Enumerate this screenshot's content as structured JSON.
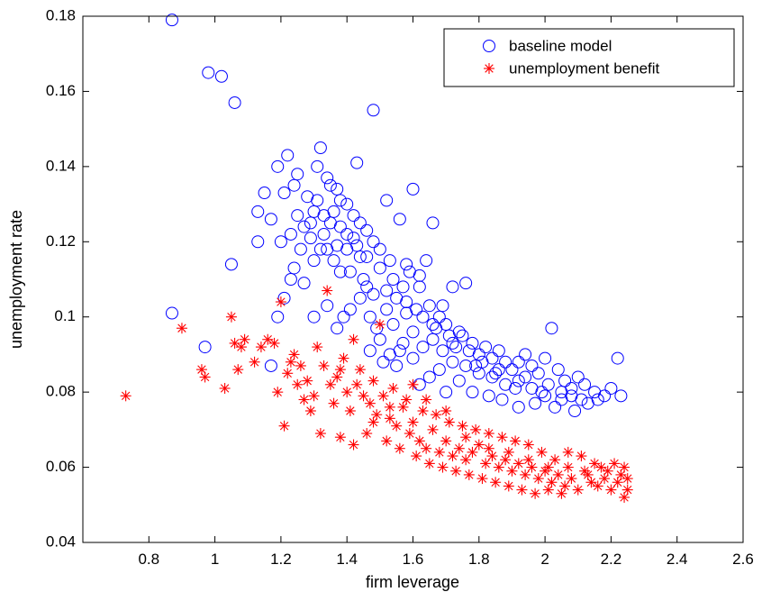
{
  "chart_data": {
    "type": "scatter",
    "xlabel": "firm leverage",
    "ylabel": "unemployment rate",
    "xlim": [
      0.6,
      2.6
    ],
    "ylim": [
      0.04,
      0.18
    ],
    "xticks": [
      "0.8",
      "1",
      "1.2",
      "1.4",
      "1.6",
      "1.8",
      "2",
      "2.2",
      "2.4",
      "2.6"
    ],
    "yticks": [
      "0.04",
      "0.06",
      "0.08",
      "0.1",
      "0.12",
      "0.14",
      "0.16",
      "0.18"
    ],
    "grid": false,
    "legend_position": "top-right",
    "series": [
      {
        "name": "baseline model",
        "marker": "circle",
        "color": "#0000ff",
        "points": [
          [
            0.87,
            0.179
          ],
          [
            0.98,
            0.165
          ],
          [
            1.02,
            0.164
          ],
          [
            1.06,
            0.157
          ],
          [
            1.48,
            0.155
          ],
          [
            0.87,
            0.101
          ],
          [
            0.97,
            0.092
          ],
          [
            1.05,
            0.114
          ],
          [
            1.17,
            0.087
          ],
          [
            1.13,
            0.128
          ],
          [
            1.15,
            0.133
          ],
          [
            1.17,
            0.126
          ],
          [
            1.19,
            0.14
          ],
          [
            1.21,
            0.133
          ],
          [
            1.22,
            0.143
          ],
          [
            1.24,
            0.135
          ],
          [
            1.25,
            0.138
          ],
          [
            1.2,
            0.12
          ],
          [
            1.13,
            0.12
          ],
          [
            1.28,
            0.132
          ],
          [
            1.3,
            0.128
          ],
          [
            1.32,
            0.145
          ],
          [
            1.31,
            0.14
          ],
          [
            1.35,
            0.135
          ],
          [
            1.29,
            0.125
          ],
          [
            1.26,
            0.118
          ],
          [
            1.24,
            0.113
          ],
          [
            1.23,
            0.11
          ],
          [
            1.21,
            0.105
          ],
          [
            1.19,
            0.1
          ],
          [
            1.27,
            0.109
          ],
          [
            1.3,
            0.115
          ],
          [
            1.33,
            0.122
          ],
          [
            1.36,
            0.128
          ],
          [
            1.38,
            0.131
          ],
          [
            1.43,
            0.141
          ],
          [
            1.4,
            0.13
          ],
          [
            1.42,
            0.127
          ],
          [
            1.44,
            0.125
          ],
          [
            1.34,
            0.118
          ],
          [
            1.36,
            0.115
          ],
          [
            1.38,
            0.112
          ],
          [
            1.4,
            0.118
          ],
          [
            1.42,
            0.121
          ],
          [
            1.46,
            0.123
          ],
          [
            1.48,
            0.12
          ],
          [
            1.5,
            0.118
          ],
          [
            1.52,
            0.131
          ],
          [
            1.56,
            0.126
          ],
          [
            1.6,
            0.134
          ],
          [
            1.66,
            0.125
          ],
          [
            1.64,
            0.115
          ],
          [
            1.59,
            0.112
          ],
          [
            1.54,
            0.11
          ],
          [
            1.5,
            0.113
          ],
          [
            1.46,
            0.108
          ],
          [
            1.44,
            0.105
          ],
          [
            1.41,
            0.102
          ],
          [
            1.39,
            0.1
          ],
          [
            1.37,
            0.097
          ],
          [
            1.3,
            0.1
          ],
          [
            1.34,
            0.103
          ],
          [
            1.47,
            0.1
          ],
          [
            1.49,
            0.097
          ],
          [
            1.52,
            0.102
          ],
          [
            1.55,
            0.105
          ],
          [
            1.58,
            0.104
          ],
          [
            1.62,
            0.108
          ],
          [
            1.65,
            0.103
          ],
          [
            1.68,
            0.1
          ],
          [
            1.72,
            0.108
          ],
          [
            1.76,
            0.109
          ],
          [
            1.7,
            0.098
          ],
          [
            1.74,
            0.096
          ],
          [
            1.6,
            0.096
          ],
          [
            1.57,
            0.093
          ],
          [
            1.53,
            0.09
          ],
          [
            1.55,
            0.087
          ],
          [
            1.6,
            0.089
          ],
          [
            1.63,
            0.092
          ],
          [
            1.66,
            0.094
          ],
          [
            1.69,
            0.091
          ],
          [
            1.72,
            0.093
          ],
          [
            1.75,
            0.095
          ],
          [
            1.78,
            0.093
          ],
          [
            1.8,
            0.09
          ],
          [
            1.82,
            0.092
          ],
          [
            1.84,
            0.089
          ],
          [
            1.86,
            0.091
          ],
          [
            1.88,
            0.088
          ],
          [
            1.9,
            0.086
          ],
          [
            1.92,
            0.088
          ],
          [
            1.94,
            0.09
          ],
          [
            1.96,
            0.087
          ],
          [
            1.98,
            0.085
          ],
          [
            2.0,
            0.089
          ],
          [
            2.02,
            0.097
          ],
          [
            2.04,
            0.086
          ],
          [
            2.06,
            0.083
          ],
          [
            2.08,
            0.081
          ],
          [
            2.1,
            0.084
          ],
          [
            2.12,
            0.082
          ],
          [
            2.15,
            0.08
          ],
          [
            2.18,
            0.079
          ],
          [
            2.22,
            0.089
          ],
          [
            2.23,
            0.079
          ],
          [
            2.2,
            0.081
          ],
          [
            2.13,
            0.077
          ],
          [
            2.09,
            0.075
          ],
          [
            2.05,
            0.078
          ],
          [
            2.0,
            0.079
          ],
          [
            1.96,
            0.081
          ],
          [
            1.92,
            0.083
          ],
          [
            1.88,
            0.082
          ],
          [
            1.84,
            0.084
          ],
          [
            1.8,
            0.085
          ],
          [
            1.76,
            0.087
          ],
          [
            1.72,
            0.088
          ],
          [
            1.68,
            0.086
          ],
          [
            1.65,
            0.084
          ],
          [
            1.62,
            0.082
          ],
          [
            1.7,
            0.08
          ],
          [
            1.74,
            0.083
          ],
          [
            1.78,
            0.08
          ],
          [
            1.83,
            0.079
          ],
          [
            1.87,
            0.078
          ],
          [
            1.92,
            0.076
          ],
          [
            1.97,
            0.077
          ],
          [
            2.03,
            0.076
          ],
          [
            2.08,
            0.079
          ],
          [
            2.01,
            0.082
          ],
          [
            1.94,
            0.084
          ],
          [
            1.86,
            0.086
          ],
          [
            1.81,
            0.088
          ],
          [
            1.77,
            0.091
          ],
          [
            1.71,
            0.095
          ],
          [
            1.67,
            0.097
          ],
          [
            1.63,
            0.1
          ],
          [
            1.58,
            0.101
          ],
          [
            1.54,
            0.098
          ],
          [
            1.5,
            0.094
          ],
          [
            1.47,
            0.091
          ],
          [
            1.51,
            0.088
          ],
          [
            1.56,
            0.091
          ],
          [
            1.46,
            0.116
          ],
          [
            1.43,
            0.119
          ],
          [
            1.4,
            0.122
          ],
          [
            1.37,
            0.119
          ],
          [
            1.35,
            0.125
          ],
          [
            1.32,
            0.118
          ],
          [
            1.29,
            0.121
          ],
          [
            1.27,
            0.124
          ],
          [
            1.25,
            0.127
          ],
          [
            1.23,
            0.122
          ],
          [
            1.41,
            0.112
          ],
          [
            1.45,
            0.11
          ],
          [
            1.48,
            0.106
          ],
          [
            1.52,
            0.107
          ],
          [
            1.57,
            0.108
          ],
          [
            1.61,
            0.102
          ],
          [
            1.66,
            0.098
          ],
          [
            1.73,
            0.092
          ],
          [
            1.79,
            0.087
          ],
          [
            1.85,
            0.085
          ],
          [
            1.91,
            0.081
          ],
          [
            1.99,
            0.08
          ],
          [
            2.05,
            0.08
          ],
          [
            2.11,
            0.078
          ],
          [
            2.16,
            0.078
          ],
          [
            1.38,
            0.124
          ],
          [
            1.33,
            0.127
          ],
          [
            1.31,
            0.131
          ],
          [
            1.34,
            0.137
          ],
          [
            1.37,
            0.134
          ],
          [
            1.44,
            0.116
          ],
          [
            1.53,
            0.115
          ],
          [
            1.58,
            0.114
          ],
          [
            1.62,
            0.111
          ],
          [
            1.69,
            0.103
          ]
        ]
      },
      {
        "name": "unemployment benefit",
        "marker": "star",
        "color": "#ff0000",
        "points": [
          [
            0.73,
            0.079
          ],
          [
            0.9,
            0.097
          ],
          [
            0.96,
            0.086
          ],
          [
            0.97,
            0.084
          ],
          [
            1.03,
            0.081
          ],
          [
            1.05,
            0.1
          ],
          [
            1.06,
            0.093
          ],
          [
            1.08,
            0.092
          ],
          [
            1.09,
            0.094
          ],
          [
            1.07,
            0.086
          ],
          [
            1.12,
            0.088
          ],
          [
            1.14,
            0.092
          ],
          [
            1.16,
            0.094
          ],
          [
            1.18,
            0.093
          ],
          [
            1.2,
            0.104
          ],
          [
            1.19,
            0.08
          ],
          [
            1.21,
            0.071
          ],
          [
            1.22,
            0.085
          ],
          [
            1.24,
            0.09
          ],
          [
            1.26,
            0.087
          ],
          [
            1.28,
            0.083
          ],
          [
            1.3,
            0.079
          ],
          [
            1.32,
            0.069
          ],
          [
            1.34,
            0.107
          ],
          [
            1.35,
            0.082
          ],
          [
            1.36,
            0.077
          ],
          [
            1.38,
            0.086
          ],
          [
            1.4,
            0.08
          ],
          [
            1.42,
            0.094
          ],
          [
            1.41,
            0.075
          ],
          [
            1.43,
            0.082
          ],
          [
            1.45,
            0.079
          ],
          [
            1.47,
            0.077
          ],
          [
            1.49,
            0.074
          ],
          [
            1.5,
            0.098
          ],
          [
            1.51,
            0.079
          ],
          [
            1.53,
            0.073
          ],
          [
            1.55,
            0.071
          ],
          [
            1.57,
            0.076
          ],
          [
            1.59,
            0.069
          ],
          [
            1.6,
            0.072
          ],
          [
            1.62,
            0.067
          ],
          [
            1.64,
            0.065
          ],
          [
            1.66,
            0.07
          ],
          [
            1.68,
            0.064
          ],
          [
            1.7,
            0.067
          ],
          [
            1.72,
            0.063
          ],
          [
            1.74,
            0.065
          ],
          [
            1.76,
            0.062
          ],
          [
            1.78,
            0.064
          ],
          [
            1.8,
            0.066
          ],
          [
            1.82,
            0.061
          ],
          [
            1.84,
            0.063
          ],
          [
            1.86,
            0.06
          ],
          [
            1.88,
            0.062
          ],
          [
            1.9,
            0.059
          ],
          [
            1.92,
            0.061
          ],
          [
            1.94,
            0.058
          ],
          [
            1.96,
            0.06
          ],
          [
            1.98,
            0.057
          ],
          [
            2.0,
            0.059
          ],
          [
            2.02,
            0.056
          ],
          [
            2.04,
            0.058
          ],
          [
            2.06,
            0.055
          ],
          [
            2.08,
            0.057
          ],
          [
            2.1,
            0.054
          ],
          [
            2.12,
            0.059
          ],
          [
            2.14,
            0.056
          ],
          [
            2.16,
            0.055
          ],
          [
            2.18,
            0.057
          ],
          [
            2.2,
            0.054
          ],
          [
            2.22,
            0.056
          ],
          [
            2.24,
            0.06
          ],
          [
            2.25,
            0.057
          ],
          [
            2.24,
            0.052
          ],
          [
            2.25,
            0.054
          ],
          [
            2.23,
            0.058
          ],
          [
            2.21,
            0.061
          ],
          [
            2.19,
            0.059
          ],
          [
            2.15,
            0.061
          ],
          [
            2.11,
            0.063
          ],
          [
            2.07,
            0.064
          ],
          [
            2.03,
            0.062
          ],
          [
            1.99,
            0.064
          ],
          [
            1.95,
            0.066
          ],
          [
            1.91,
            0.067
          ],
          [
            1.87,
            0.068
          ],
          [
            1.83,
            0.069
          ],
          [
            1.79,
            0.07
          ],
          [
            1.75,
            0.071
          ],
          [
            1.71,
            0.072
          ],
          [
            1.67,
            0.074
          ],
          [
            1.63,
            0.075
          ],
          [
            1.58,
            0.078
          ],
          [
            1.54,
            0.081
          ],
          [
            1.48,
            0.083
          ],
          [
            1.44,
            0.086
          ],
          [
            1.39,
            0.089
          ],
          [
            1.37,
            0.084
          ],
          [
            1.33,
            0.087
          ],
          [
            1.29,
            0.075
          ],
          [
            1.27,
            0.078
          ],
          [
            1.25,
            0.082
          ],
          [
            1.23,
            0.088
          ],
          [
            1.31,
            0.092
          ],
          [
            1.46,
            0.069
          ],
          [
            1.52,
            0.067
          ],
          [
            1.56,
            0.065
          ],
          [
            1.61,
            0.063
          ],
          [
            1.65,
            0.061
          ],
          [
            1.69,
            0.06
          ],
          [
            1.73,
            0.059
          ],
          [
            1.77,
            0.058
          ],
          [
            1.81,
            0.057
          ],
          [
            1.85,
            0.056
          ],
          [
            1.89,
            0.055
          ],
          [
            1.93,
            0.054
          ],
          [
            1.97,
            0.053
          ],
          [
            2.01,
            0.054
          ],
          [
            2.05,
            0.053
          ],
          [
            1.42,
            0.066
          ],
          [
            1.38,
            0.068
          ],
          [
            1.48,
            0.072
          ],
          [
            1.53,
            0.076
          ],
          [
            1.6,
            0.082
          ],
          [
            1.64,
            0.078
          ],
          [
            1.7,
            0.075
          ],
          [
            1.76,
            0.068
          ],
          [
            1.83,
            0.065
          ],
          [
            1.89,
            0.064
          ],
          [
            1.95,
            0.062
          ],
          [
            2.01,
            0.06
          ],
          [
            2.07,
            0.06
          ],
          [
            2.13,
            0.058
          ],
          [
            2.17,
            0.06
          ]
        ]
      }
    ]
  }
}
